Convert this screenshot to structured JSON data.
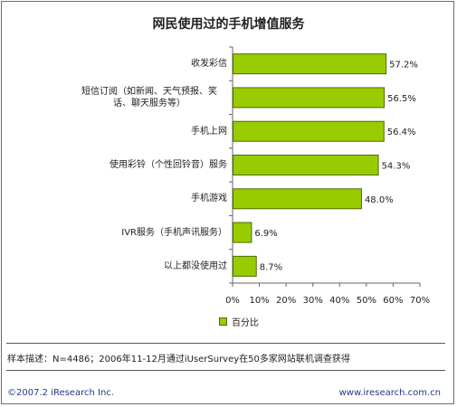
{
  "chart_data": {
    "type": "bar",
    "orientation": "horizontal",
    "title": "网民使用过的手机增值服务",
    "categories": [
      "收发彩信",
      "短信订阅（如新闻、天气预报、笑话、聊天服务等）",
      "手机上网",
      "使用彩铃（个性回铃音）服务",
      "手机游戏",
      "IVR服务（手机声讯服务）",
      "以上都没使用过"
    ],
    "series": [
      {
        "name": "百分比",
        "values": [
          57.2,
          56.5,
          56.4,
          54.3,
          48.0,
          6.9,
          8.7
        ]
      }
    ],
    "value_labels": [
      "57.2%",
      "56.5%",
      "56.4%",
      "54.3%",
      "48.0%",
      "6.9%",
      "8.7%"
    ],
    "xlim": [
      0,
      70
    ],
    "xticks": [
      "0%",
      "10%",
      "20%",
      "30%",
      "40%",
      "50%",
      "60%",
      "70%"
    ],
    "grid": false,
    "legend": "bottom",
    "colors": {
      "bar": "#99cc00",
      "bar_border": "#4d6b00",
      "axis": "#666666"
    }
  },
  "footnote": "样本描述：N=4486；2006年11-12月通过iUserSurvey在50多家网站联机调查获得",
  "copyright": "©2007.2 iResearch Inc.",
  "website": "www.iresearch.com.cn"
}
